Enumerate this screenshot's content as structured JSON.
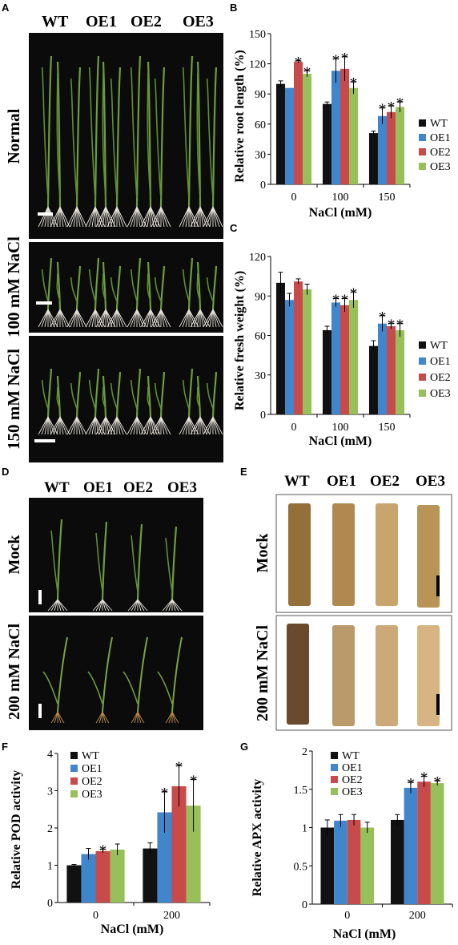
{
  "panels": {
    "A": {
      "letter": "A",
      "columns": [
        "WT",
        "OE1",
        "OE2",
        "OE3"
      ],
      "rows": [
        "Normal",
        "100 mM NaCl",
        "150 mM NaCl"
      ]
    },
    "D": {
      "letter": "D",
      "columns": [
        "WT",
        "OE1",
        "OE2",
        "OE3"
      ],
      "rows": [
        "Mock",
        "200 mM NaCl"
      ]
    },
    "E": {
      "letter": "E",
      "columns": [
        "WT",
        "OE1",
        "OE2",
        "OE3"
      ],
      "rows": [
        "Mock",
        "200 mM NaCl"
      ]
    }
  },
  "colors": {
    "WT": "#111111",
    "OE1": "#3f86cc",
    "OE2": "#c94a4a",
    "OE3": "#98c05a"
  },
  "chart_data": [
    {
      "id": "B",
      "letter": "B",
      "type": "bar",
      "categories": [
        "0",
        "100",
        "150"
      ],
      "xlabel": "NaCl (mM)",
      "ylabel": "Relative root length (%)",
      "ylim": [
        0,
        150
      ],
      "yticks": [
        0,
        30,
        60,
        90,
        120,
        150
      ],
      "legend": "right",
      "series": [
        {
          "name": "WT",
          "values": [
            100,
            80,
            51
          ],
          "errors": [
            3,
            2,
            2
          ],
          "stars": [
            false,
            false,
            false
          ]
        },
        {
          "name": "OE1",
          "values": [
            96,
            113,
            68
          ],
          "errors": [
            0,
            12,
            8
          ],
          "stars": [
            false,
            true,
            true
          ]
        },
        {
          "name": "OE2",
          "values": [
            122,
            115,
            72
          ],
          "errors": [
            1,
            12,
            6
          ],
          "stars": [
            true,
            true,
            true
          ]
        },
        {
          "name": "OE3",
          "values": [
            110,
            96,
            77
          ],
          "errors": [
            3,
            6,
            5
          ],
          "stars": [
            true,
            true,
            true
          ]
        }
      ]
    },
    {
      "id": "C",
      "letter": "C",
      "type": "bar",
      "categories": [
        "0",
        "100",
        "150"
      ],
      "xlabel": "NaCl (mM)",
      "ylabel": "Relative fresh weight (%)",
      "ylim": [
        0,
        120
      ],
      "yticks": [
        0,
        30,
        60,
        90,
        120
      ],
      "legend": "right",
      "series": [
        {
          "name": "WT",
          "values": [
            100,
            64,
            52
          ],
          "errors": [
            8,
            3,
            4
          ],
          "stars": [
            false,
            false,
            false
          ]
        },
        {
          "name": "OE1",
          "values": [
            87,
            85,
            69
          ],
          "errors": [
            5,
            3,
            6
          ],
          "stars": [
            false,
            true,
            true
          ]
        },
        {
          "name": "OE2",
          "values": [
            101,
            83,
            67
          ],
          "errors": [
            2,
            5,
            2
          ],
          "stars": [
            false,
            true,
            true
          ]
        },
        {
          "name": "OE3",
          "values": [
            95,
            87,
            64
          ],
          "errors": [
            4,
            6,
            5
          ],
          "stars": [
            false,
            true,
            true
          ]
        }
      ]
    },
    {
      "id": "F",
      "letter": "F",
      "type": "bar",
      "categories": [
        "0",
        "200"
      ],
      "xlabel": "NaCl (mM)",
      "ylabel": "Relative POD activity",
      "ylim": [
        0,
        4
      ],
      "yticks": [
        0,
        1,
        2,
        3,
        4
      ],
      "legend": "top-left",
      "series": [
        {
          "name": "WT",
          "values": [
            1.0,
            1.45
          ],
          "errors": [
            0.02,
            0.15
          ],
          "stars": [
            false,
            false
          ]
        },
        {
          "name": "OE1",
          "values": [
            1.3,
            2.42
          ],
          "errors": [
            0.15,
            0.55
          ],
          "stars": [
            false,
            true
          ]
        },
        {
          "name": "OE2",
          "values": [
            1.38,
            3.12
          ],
          "errors": [
            0.05,
            0.55
          ],
          "stars": [
            true,
            true
          ]
        },
        {
          "name": "OE3",
          "values": [
            1.42,
            2.6
          ],
          "errors": [
            0.15,
            0.7
          ],
          "stars": [
            false,
            true
          ]
        }
      ]
    },
    {
      "id": "G",
      "letter": "G",
      "type": "bar",
      "categories": [
        "0",
        "200"
      ],
      "xlabel": "NaCl (mM)",
      "ylabel": "Relative APX activity",
      "ylim": [
        0,
        2
      ],
      "yticks": [
        0,
        0.5,
        1,
        1.5,
        2
      ],
      "legend": "top-left",
      "series": [
        {
          "name": "WT",
          "values": [
            1.0,
            1.1
          ],
          "errors": [
            0.1,
            0.07
          ],
          "stars": [
            false,
            false
          ]
        },
        {
          "name": "OE1",
          "values": [
            1.09,
            1.52
          ],
          "errors": [
            0.08,
            0.07
          ],
          "stars": [
            false,
            true
          ]
        },
        {
          "name": "OE2",
          "values": [
            1.1,
            1.6
          ],
          "errors": [
            0.07,
            0.07
          ],
          "stars": [
            false,
            true
          ]
        },
        {
          "name": "OE3",
          "values": [
            1.0,
            1.58
          ],
          "errors": [
            0.07,
            0.03
          ],
          "stars": [
            false,
            true
          ]
        }
      ]
    }
  ]
}
